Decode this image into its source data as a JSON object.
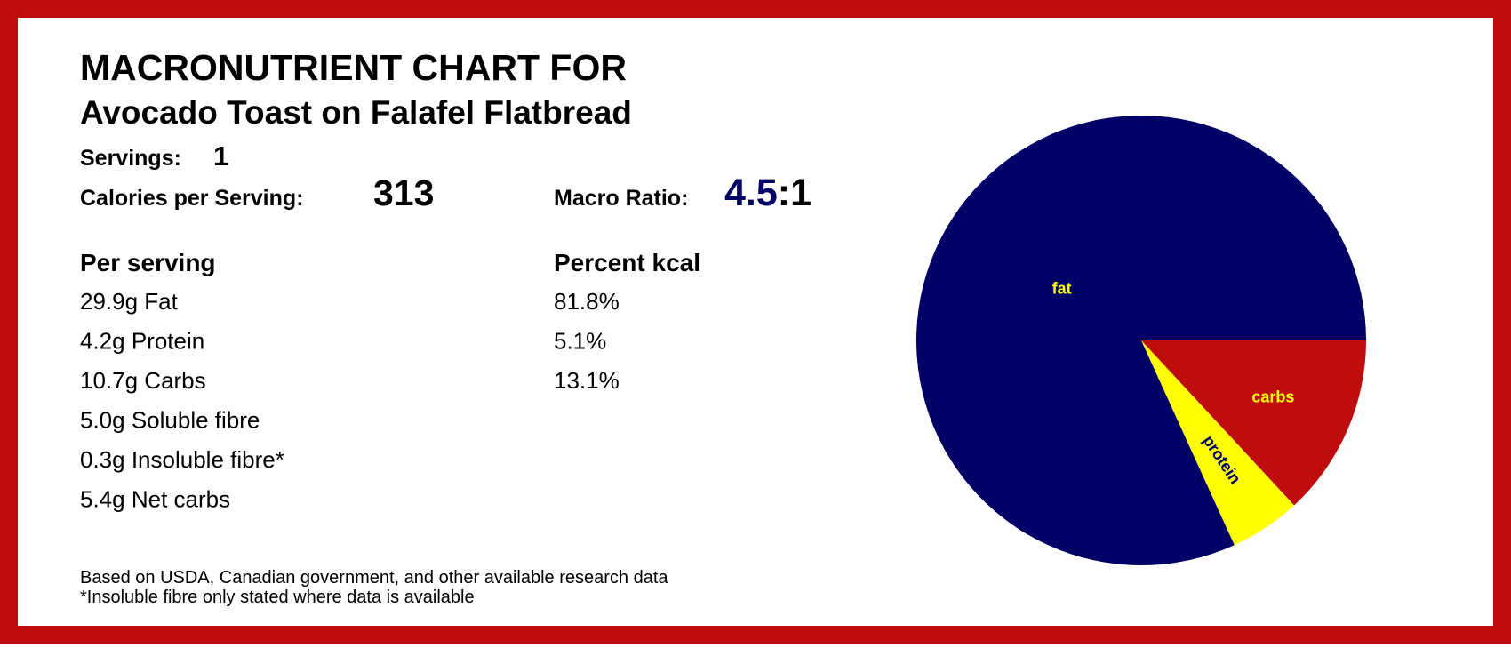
{
  "title": "MACRONUTRIENT CHART FOR",
  "subtitle": "Avocado Toast on Falafel Flatbread",
  "servings": {
    "label": "Servings:",
    "value": 1
  },
  "calories": {
    "label": "Calories per Serving:",
    "value": 313
  },
  "macro_ratio": {
    "label": "Macro Ratio:",
    "ratio": "4.5",
    "rest": ":1"
  },
  "table": {
    "headers": [
      "Per serving",
      "Percent kcal"
    ],
    "rows": [
      [
        "29.9g Fat",
        "81.8%"
      ],
      [
        "4.2g Protein",
        "5.1%"
      ],
      [
        "10.7g Carbs",
        "13.1%"
      ],
      [
        "5.0g Soluble fibre"
      ],
      [
        "0.3g Insoluble fibre*"
      ],
      [
        "5.4g Net carbs"
      ]
    ]
  },
  "footnotes": [
    "Based on USDA, Canadian government, and other available research data",
    "*Insoluble fibre only stated where data is available"
  ],
  "chart_data": {
    "type": "pie",
    "categories": [
      "carbs",
      "protein",
      "fat"
    ],
    "values": [
      13.1,
      5.1,
      81.8
    ],
    "colors": [
      "#bf0d0d",
      "#ffff00",
      "#000066"
    ],
    "label_colors": [
      "#ffff00",
      "#000066",
      "#ffff00"
    ]
  }
}
